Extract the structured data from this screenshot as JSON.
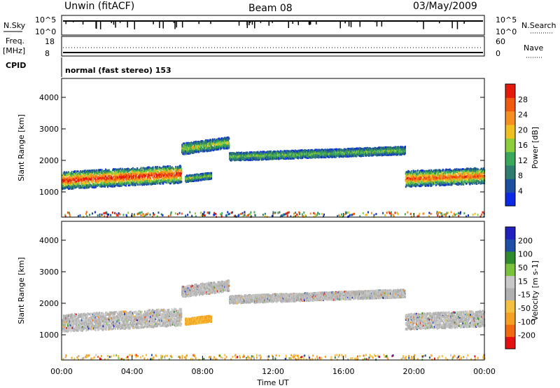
{
  "header": {
    "station": "Unwin (fitACF)",
    "beam": "Beam 08",
    "date": "03/May/2009"
  },
  "status_panels": {
    "nsky": {
      "label": "N.Sky",
      "tick_hi": "10^5",
      "tick_lo": "10^0"
    },
    "nsearch": {
      "label": "N.Search"
    },
    "freq": {
      "label": "Freq.",
      "unit": "[MHz]",
      "tick_hi": "18",
      "tick_lo": "8"
    },
    "nave": {
      "label": "Nave",
      "tick_hi": "60",
      "tick_lo": "0"
    },
    "cpid": {
      "label": "CPID",
      "value": "normal (fast stereo) 153"
    }
  },
  "xaxis": {
    "label": "Time UT",
    "ticks": [
      "00:00",
      "04:00",
      "08:00",
      "12:00",
      "16:00",
      "20:00",
      "00:00"
    ]
  },
  "colors": {
    "power": [
      "#0a2ae6",
      "#1d4fa0",
      "#2f7d6d",
      "#3aa85a",
      "#8ccf3c",
      "#f0c020",
      "#f59020",
      "#f05a10",
      "#e61a0a"
    ],
    "velocity": [
      "#e61010",
      "#f06a10",
      "#f5a020",
      "#f5c040",
      "#b0b0b0",
      "#c8c8c8",
      "#7ac23c",
      "#2e8b2e",
      "#1e4fa8",
      "#2020c0"
    ]
  },
  "chart_data": [
    {
      "type": "heatmap",
      "name": "power",
      "ylabel": "Slant Range [km]",
      "yticks": [
        "1000",
        "2000",
        "3000",
        "4000"
      ],
      "ylim": [
        200,
        4600
      ],
      "xlim_hours": [
        0,
        24
      ],
      "colorbar": {
        "label": "Power [dB]",
        "ticks": [
          "4",
          "8",
          "12",
          "16",
          "20",
          "24",
          "28"
        ],
        "range": [
          0,
          30
        ]
      },
      "bands": [
        {
          "t": [
            0,
            6.8
          ],
          "range_center": [
            1350,
            1550
          ],
          "width": 550,
          "strength": 0.85
        },
        {
          "t": [
            6.8,
            9.5
          ],
          "range_center": [
            2350,
            2550
          ],
          "width": 350,
          "strength": 0.45
        },
        {
          "t": [
            9.5,
            19.5
          ],
          "range_center": [
            2100,
            2300
          ],
          "width": 250,
          "strength": 0.35
        },
        {
          "t": [
            19.5,
            24
          ],
          "range_center": [
            1400,
            1500
          ],
          "width": 500,
          "strength": 0.75
        },
        {
          "t": [
            7.0,
            8.5
          ],
          "range_center": [
            1400,
            1500
          ],
          "width": 200,
          "strength": 0.4
        }
      ]
    },
    {
      "type": "heatmap",
      "name": "velocity",
      "ylabel": "Slant Range [km]",
      "yticks": [
        "1000",
        "2000",
        "3000",
        "4000"
      ],
      "ylim": [
        200,
        4600
      ],
      "xlim_hours": [
        0,
        24
      ],
      "colorbar": {
        "label": "Velocity [m s-1]",
        "ticks": [
          "-200",
          "-100",
          "-50",
          "-15",
          "15",
          "50",
          "100",
          "200"
        ],
        "range": [
          -250,
          250
        ]
      },
      "bands": [
        {
          "t": [
            0,
            6.8
          ],
          "range_center": [
            1350,
            1550
          ],
          "width": 550,
          "strength": 0.0
        },
        {
          "t": [
            6.8,
            9.5
          ],
          "range_center": [
            2350,
            2550
          ],
          "width": 350,
          "strength": 0.0
        },
        {
          "t": [
            9.5,
            19.5
          ],
          "range_center": [
            2100,
            2300
          ],
          "width": 250,
          "strength": 0.0
        },
        {
          "t": [
            19.5,
            24
          ],
          "range_center": [
            1400,
            1500
          ],
          "width": 500,
          "strength": 0.0
        },
        {
          "t": [
            7.0,
            8.5
          ],
          "range_center": [
            1400,
            1500
          ],
          "width": 200,
          "strength": -0.5
        }
      ]
    }
  ]
}
